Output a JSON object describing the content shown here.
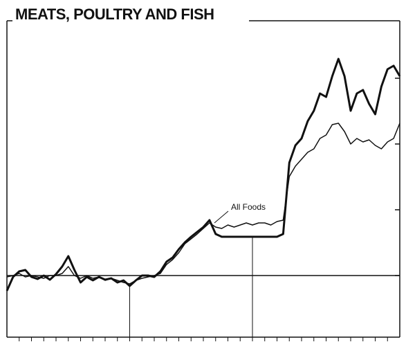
{
  "chart_data": {
    "type": "line",
    "title": "MEATS, POULTRY AND FISH",
    "annotation": "All Foods",
    "x": [
      0,
      0.5,
      1,
      1.5,
      2,
      2.5,
      3,
      3.5,
      4,
      4.5,
      5,
      5.5,
      6,
      6.5,
      7,
      7.5,
      8,
      8.5,
      9,
      9.5,
      10,
      10.5,
      11,
      11.5,
      12,
      12.5,
      13,
      13.5,
      14,
      14.5,
      15,
      15.5,
      16,
      16.5,
      17,
      17.5,
      18,
      18.5,
      19,
      19.5,
      20,
      20.5,
      21,
      21.5,
      22,
      22.5,
      23,
      23.5,
      24,
      24.5,
      25,
      25.5,
      26,
      26.5,
      27,
      27.5,
      28,
      28.5,
      29,
      29.5,
      30,
      30.5,
      31,
      31.5,
      32
    ],
    "series": [
      {
        "color": "#111111",
        "width": 3,
        "values": [
          67,
          87,
          95,
          97,
          87,
          84,
          89,
          83,
          91,
          102,
          117,
          97,
          79,
          87,
          82,
          87,
          83,
          85,
          79,
          82,
          74,
          82,
          89,
          89,
          87,
          95,
          109,
          115,
          127,
          137,
          145,
          152,
          159,
          169,
          149,
          145,
          145,
          145,
          145,
          145,
          145,
          145,
          145,
          145,
          145,
          149,
          252,
          277,
          287,
          312,
          327,
          352,
          347,
          377,
          402,
          377,
          327,
          352,
          357,
          337,
          322,
          362,
          387,
          392,
          377
        ]
      },
      {
        "name": "All Foods",
        "color": "#111111",
        "width": 1.5,
        "values": [
          87,
          89,
          92,
          87,
          89,
          87,
          85,
          89,
          89,
          92,
          102,
          89,
          85,
          89,
          85,
          87,
          82,
          85,
          82,
          79,
          77,
          82,
          85,
          87,
          89,
          92,
          105,
          112,
          122,
          135,
          142,
          149,
          157,
          165,
          159,
          157,
          162,
          159,
          162,
          165,
          162,
          165,
          165,
          162,
          167,
          169,
          232,
          247,
          257,
          267,
          272,
          287,
          292,
          307,
          309,
          297,
          279,
          287,
          282,
          285,
          277,
          272,
          282,
          287,
          309
        ]
      }
    ],
    "xlim": [
      0,
      32
    ],
    "xticks": [
      1,
      2,
      3,
      4,
      5,
      6,
      7,
      8,
      9,
      10,
      11,
      12,
      13,
      14,
      15,
      16,
      17,
      18,
      19,
      20,
      21,
      22,
      23,
      24,
      25,
      26,
      27,
      28,
      29,
      30,
      31
    ],
    "ylim": [
      0,
      457
    ],
    "yticks": [
      89,
      184,
      279,
      374
    ],
    "reference_x": [
      10,
      20
    ],
    "reference_y": 89
  }
}
